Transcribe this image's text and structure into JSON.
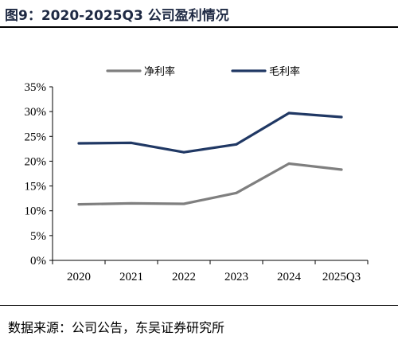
{
  "figure": {
    "title": "图9：2020-2025Q3 公司盈利情况",
    "source": "数据来源：公司公告，东吴证券研究所"
  },
  "chart_data": {
    "type": "line",
    "title": "",
    "xlabel": "",
    "ylabel": "",
    "categories": [
      "2020",
      "2021",
      "2022",
      "2023",
      "2024",
      "2025Q3"
    ],
    "y_ticks": [
      "0%",
      "5%",
      "10%",
      "15%",
      "20%",
      "25%",
      "30%",
      "35%"
    ],
    "ylim": [
      0,
      35
    ],
    "grid": false,
    "legend_position": "top",
    "series": [
      {
        "name": "净利率",
        "color": "#7f7f7f",
        "values": [
          11.3,
          11.5,
          11.4,
          13.6,
          19.5,
          18.3
        ]
      },
      {
        "name": "毛利率",
        "color": "#203864",
        "values": [
          23.6,
          23.7,
          21.8,
          23.4,
          29.7,
          28.9
        ]
      }
    ]
  }
}
